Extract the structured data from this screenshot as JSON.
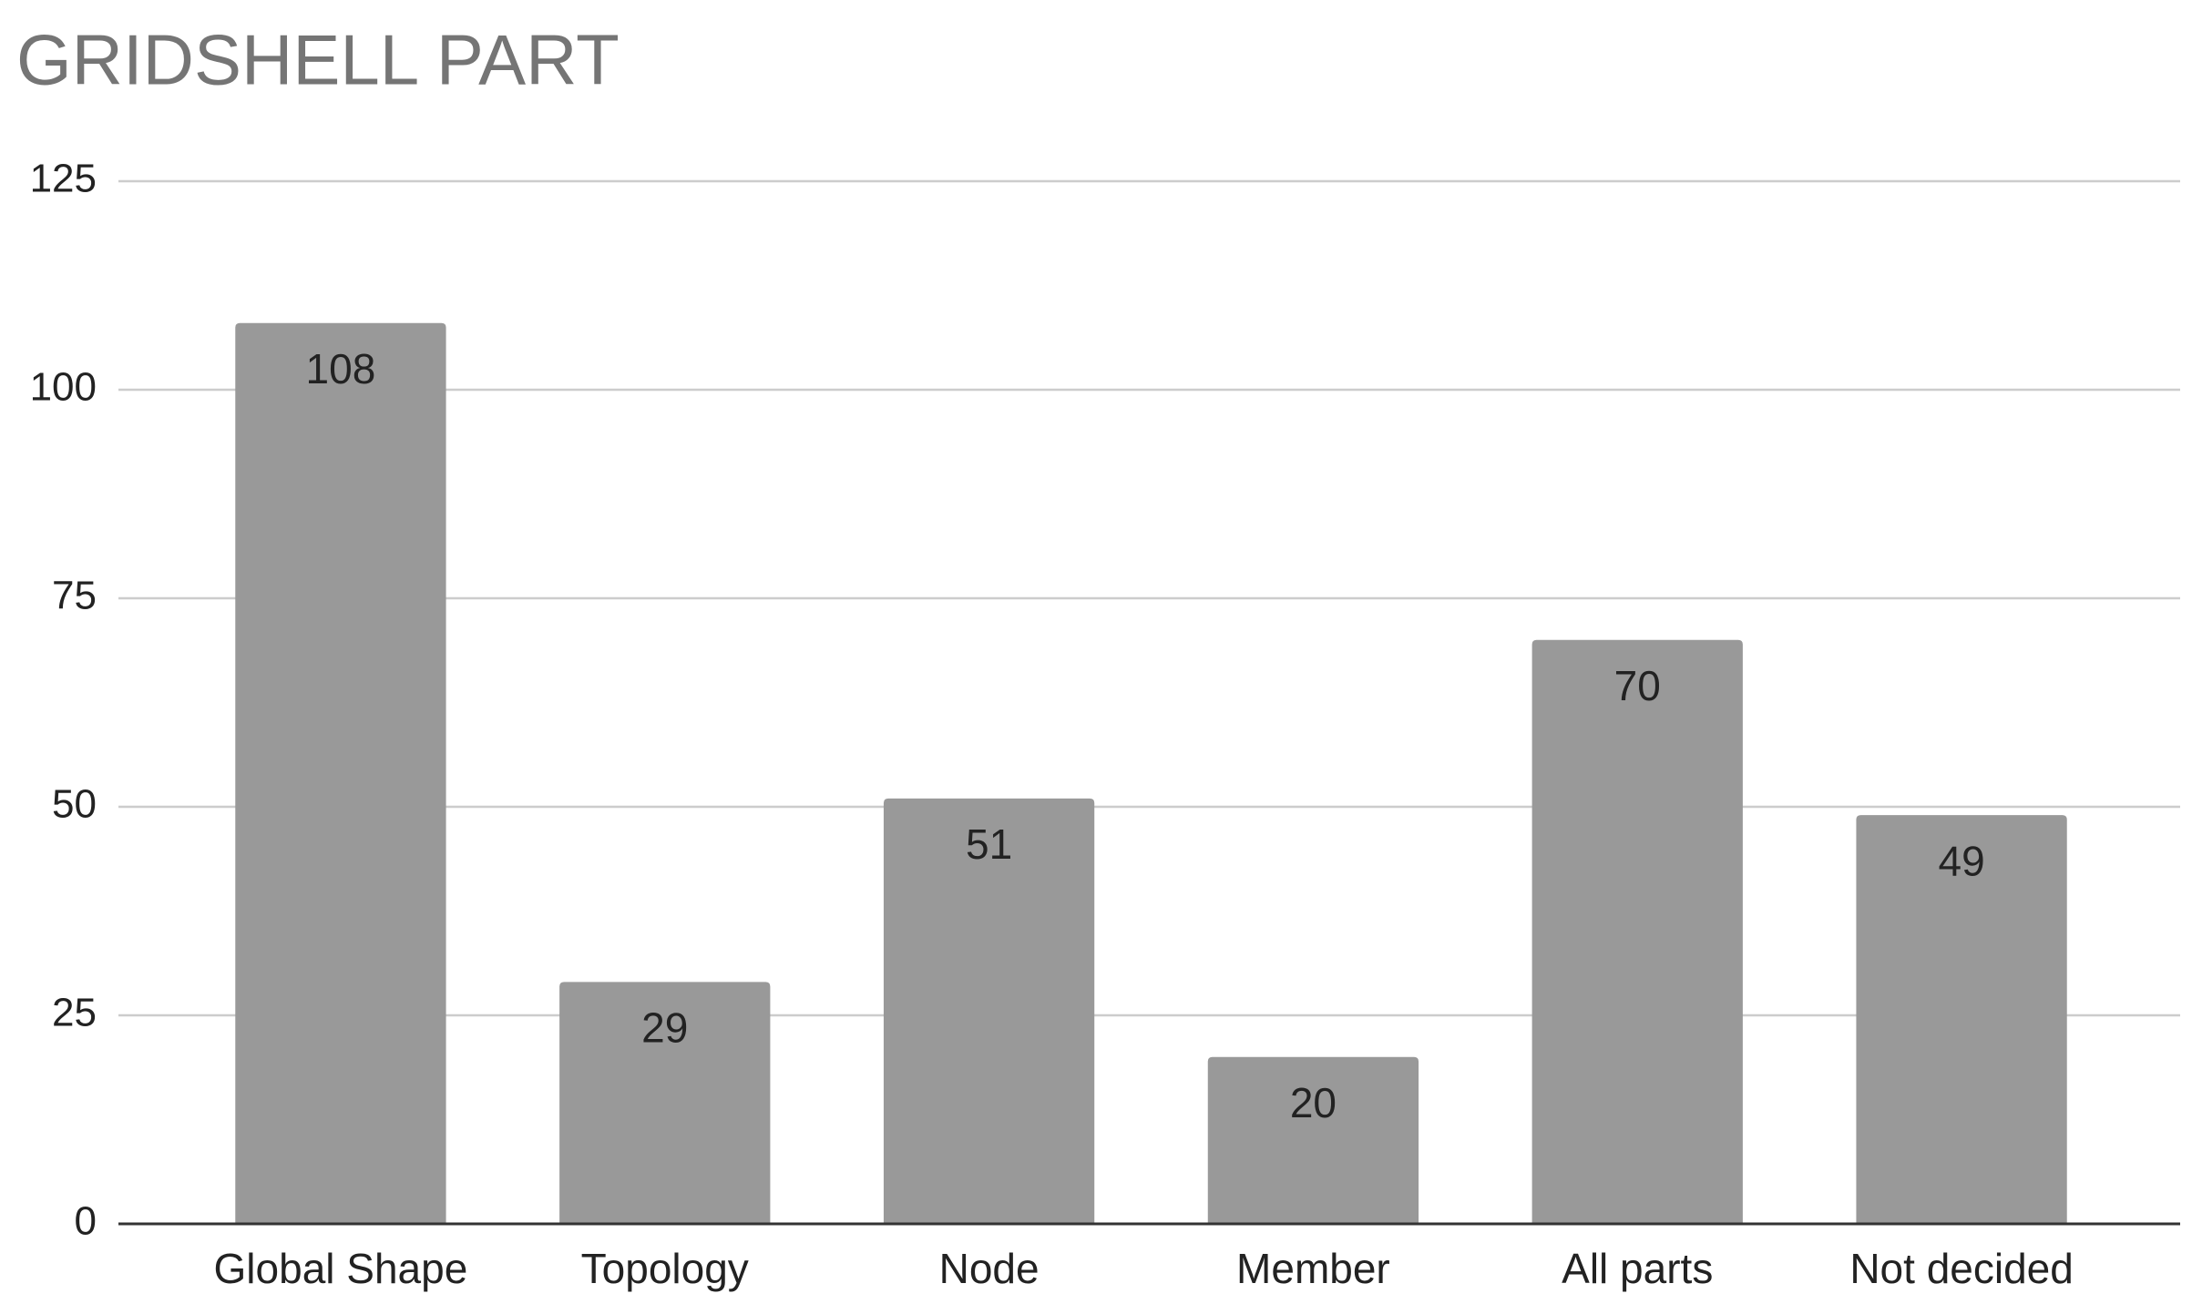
{
  "chart_data": {
    "type": "bar",
    "title": "GRIDSHELL PART",
    "categories": [
      "Global Shape",
      "Topology",
      "Node",
      "Member",
      "All parts",
      "Not decided"
    ],
    "values": [
      108,
      29,
      51,
      20,
      70,
      49
    ],
    "color": "#999999",
    "ylim": [
      0,
      125
    ],
    "yticks": [
      0,
      25,
      50,
      75,
      100,
      125
    ],
    "grid": true
  }
}
